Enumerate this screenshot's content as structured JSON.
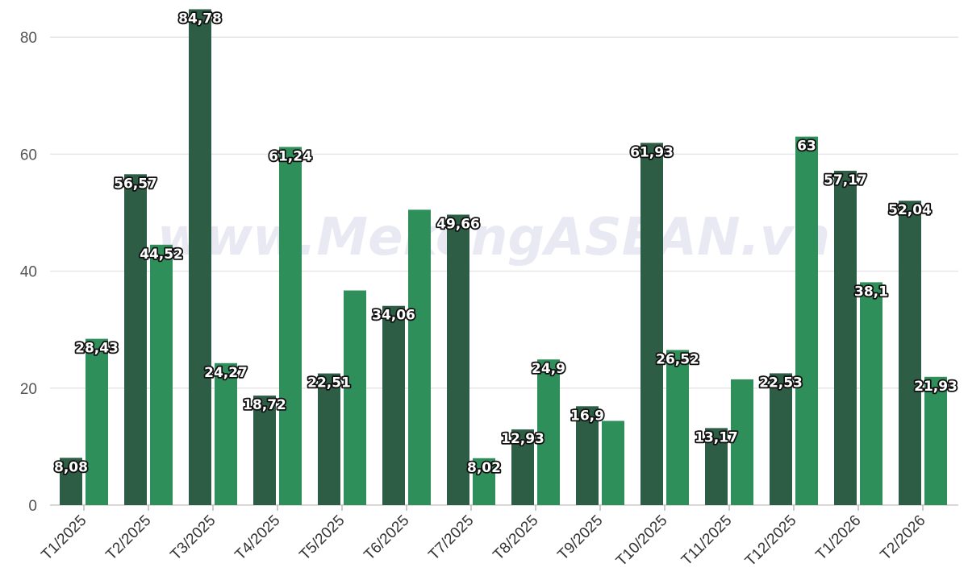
{
  "watermark": "www.MekongASEAN.vn",
  "colors": {
    "series1": "#2d5d44",
    "series2": "#2f8f5b",
    "grid": "#e6e6e6"
  },
  "chart_data": {
    "type": "bar",
    "title": "",
    "xlabel": "",
    "ylabel": "",
    "ylim": [
      0,
      85
    ],
    "yticks": [
      0,
      20,
      40,
      60,
      80
    ],
    "grid": true,
    "legend": "none",
    "categories": [
      "T1/2025",
      "T2/2025",
      "T3/2025",
      "T4/2025",
      "T5/2025",
      "T6/2025",
      "T7/2025",
      "T8/2025",
      "T9/2025",
      "T10/2025",
      "T11/2025",
      "T12/2025",
      "T1/2026",
      "T2/2026"
    ],
    "series": [
      {
        "values": [
          8.08,
          56.57,
          84.78,
          18.72,
          22.51,
          34.06,
          49.66,
          12.93,
          16.9,
          61.93,
          13.17,
          22.53,
          57.17,
          52.04
        ],
        "labels": [
          "8,08",
          "56,57",
          "84,78",
          "18,72",
          "22,51",
          "34,06",
          "49,66",
          "12,93",
          "16,9",
          "61,93",
          "13,17",
          "22,53",
          "57,17",
          "52,04"
        ]
      },
      {
        "values": [
          28.43,
          44.52,
          24.27,
          61.24,
          36.7,
          50.5,
          8.02,
          24.9,
          14.4,
          26.52,
          21.5,
          63,
          38.1,
          21.93
        ],
        "labels": [
          "28,43",
          "44,52",
          "24,27",
          "61,24",
          "",
          "",
          "8,02",
          "24,9",
          "",
          "26,52",
          "",
          "63",
          "38,1",
          "21,93"
        ]
      }
    ]
  }
}
